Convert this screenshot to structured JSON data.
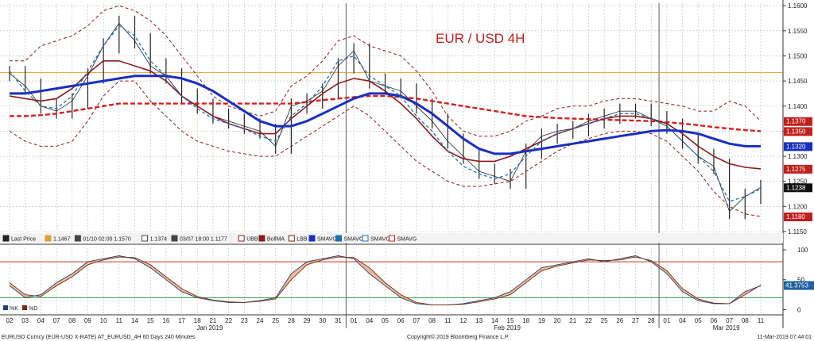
{
  "chart_data": {
    "type": "line",
    "title": "EUR / USD 4H",
    "colors": {
      "price": "#222222",
      "ubb": "#8b1a1a",
      "bollma": "#8b1a1a",
      "sma_fast": "#1f6fb5",
      "sma_mid": "#1a2fbf",
      "sma_slow": "#d42020",
      "hline": "#e0a030",
      "k": "#1f3f7a",
      "d": "#7a2b0f",
      "overbought": "#c0392b",
      "oversold": "#2e9e3e"
    },
    "price_axis": {
      "min": 1.115,
      "max": 1.1605,
      "ticks": [
        "1.1600",
        "1.1550",
        "1.1500",
        "1.1450",
        "1.1400",
        "1.1350",
        "1.1300",
        "1.1250",
        "1.1200",
        "1.1150"
      ]
    },
    "price_tags": [
      {
        "value": "1.1370",
        "color": "#c0201f",
        "y": 1.137
      },
      {
        "value": "1.1350",
        "color": "#c0201f",
        "y": 1.135
      },
      {
        "value": "1.1320",
        "color": "#1a2fbf",
        "y": 1.132
      },
      {
        "value": "1.1275",
        "color": "#c0201f",
        "y": 1.1275
      },
      {
        "value": "1.1238",
        "color": "#111111",
        "y": 1.1238
      },
      {
        "value": "1.1180",
        "color": "#c0201f",
        "y": 1.118
      }
    ],
    "hline_value": 1.1467,
    "osc_axis": {
      "ticks": [
        "100",
        "50",
        "0"
      ],
      "overbought": 80,
      "oversold": 20
    },
    "osc_tag": "41.3753",
    "x_labels": [
      "02",
      "03",
      "04",
      "07",
      "08",
      "09",
      "10",
      "11",
      "14",
      "15",
      "16",
      "17",
      "18",
      "21",
      "22",
      "23",
      "24",
      "25",
      "28",
      "29",
      "30",
      "31",
      "01",
      "04",
      "05",
      "06",
      "07",
      "08",
      "11",
      "12",
      "13",
      "14",
      "15",
      "18",
      "19",
      "20",
      "21",
      "22",
      "25",
      "26",
      "27",
      "28",
      "01",
      "04",
      "05",
      "06",
      "07",
      "08",
      "11"
    ],
    "month_labels": [
      {
        "text": "Jan 2019",
        "index": 13
      },
      {
        "text": "Feb 2019",
        "index": 32
      },
      {
        "text": "Mar 2019",
        "index": 46
      }
    ],
    "close": [
      1.1465,
      1.144,
      1.14,
      1.139,
      1.141,
      1.146,
      1.152,
      1.1565,
      1.153,
      1.148,
      1.146,
      1.142,
      1.14,
      1.138,
      1.137,
      1.136,
      1.135,
      1.132,
      1.14,
      1.141,
      1.143,
      1.148,
      1.151,
      1.145,
      1.144,
      1.143,
      1.14,
      1.137,
      1.133,
      1.13,
      1.127,
      1.126,
      1.125,
      1.131,
      1.134,
      1.135,
      1.1355,
      1.137,
      1.138,
      1.139,
      1.139,
      1.1375,
      1.136,
      1.133,
      1.13,
      1.128,
      1.119,
      1.122,
      1.1238
    ],
    "ubb": [
      1.149,
      1.149,
      1.152,
      1.153,
      1.154,
      1.156,
      1.159,
      1.16,
      1.159,
      1.157,
      1.154,
      1.15,
      1.146,
      1.142,
      1.14,
      1.139,
      1.138,
      1.139,
      1.144,
      1.146,
      1.149,
      1.153,
      1.154,
      1.152,
      1.151,
      1.15,
      1.147,
      1.143,
      1.138,
      1.135,
      1.134,
      1.134,
      1.135,
      1.137,
      1.138,
      1.1395,
      1.14,
      1.14,
      1.141,
      1.1415,
      1.1415,
      1.141,
      1.1405,
      1.14,
      1.139,
      1.139,
      1.141,
      1.14,
      1.137
    ],
    "lbb": [
      1.135,
      1.133,
      1.132,
      1.132,
      1.133,
      1.137,
      1.142,
      1.145,
      1.145,
      1.141,
      1.138,
      1.135,
      1.133,
      1.132,
      1.131,
      1.1305,
      1.13,
      1.13,
      1.132,
      1.134,
      1.136,
      1.138,
      1.14,
      1.138,
      1.135,
      1.132,
      1.129,
      1.127,
      1.125,
      1.124,
      1.124,
      1.1245,
      1.125,
      1.127,
      1.129,
      1.131,
      1.1325,
      1.1335,
      1.1345,
      1.135,
      1.135,
      1.1345,
      1.133,
      1.13,
      1.127,
      1.123,
      1.12,
      1.1185,
      1.118
    ],
    "bollma": [
      1.142,
      1.1415,
      1.141,
      1.1415,
      1.1435,
      1.1465,
      1.149,
      1.149,
      1.148,
      1.147,
      1.145,
      1.142,
      1.14,
      1.138,
      1.1365,
      1.1355,
      1.1345,
      1.1345,
      1.1375,
      1.14,
      1.1425,
      1.1445,
      1.1455,
      1.145,
      1.143,
      1.1405,
      1.1375,
      1.134,
      1.131,
      1.1295,
      1.129,
      1.129,
      1.13,
      1.1315,
      1.133,
      1.1345,
      1.1355,
      1.1365,
      1.1375,
      1.138,
      1.138,
      1.1375,
      1.1365,
      1.1345,
      1.132,
      1.13,
      1.1285,
      1.1278,
      1.1275
    ],
    "sma_fast": [
      1.147,
      1.143,
      1.14,
      1.1395,
      1.142,
      1.147,
      1.152,
      1.156,
      1.154,
      1.149,
      1.146,
      1.142,
      1.1395,
      1.1375,
      1.1365,
      1.1355,
      1.134,
      1.133,
      1.138,
      1.1405,
      1.144,
      1.149,
      1.15,
      1.146,
      1.144,
      1.142,
      1.138,
      1.135,
      1.131,
      1.128,
      1.1265,
      1.1255,
      1.1265,
      1.13,
      1.133,
      1.1345,
      1.1355,
      1.1365,
      1.1375,
      1.1385,
      1.1385,
      1.1375,
      1.136,
      1.133,
      1.13,
      1.127,
      1.121,
      1.122,
      1.1235
    ],
    "sma_mid": [
      1.1425,
      1.1425,
      1.143,
      1.1435,
      1.144,
      1.1445,
      1.145,
      1.1455,
      1.146,
      1.146,
      1.146,
      1.1455,
      1.1445,
      1.143,
      1.141,
      1.139,
      1.137,
      1.136,
      1.136,
      1.137,
      1.1385,
      1.14,
      1.1415,
      1.1425,
      1.1425,
      1.142,
      1.1405,
      1.1385,
      1.136,
      1.1335,
      1.1315,
      1.1305,
      1.1305,
      1.131,
      1.1315,
      1.132,
      1.1325,
      1.133,
      1.1335,
      1.134,
      1.1345,
      1.135,
      1.1352,
      1.135,
      1.1345,
      1.1335,
      1.1325,
      1.132,
      1.132
    ],
    "sma_slow": [
      1.138,
      1.138,
      1.1382,
      1.1385,
      1.139,
      1.1395,
      1.14,
      1.1405,
      1.1405,
      1.1405,
      1.1405,
      1.1405,
      1.1405,
      1.1405,
      1.1405,
      1.1405,
      1.1405,
      1.1405,
      1.1405,
      1.1408,
      1.1412,
      1.1415,
      1.1418,
      1.142,
      1.142,
      1.1418,
      1.1415,
      1.141,
      1.1405,
      1.14,
      1.1395,
      1.139,
      1.1385,
      1.138,
      1.1378,
      1.1376,
      1.1375,
      1.1374,
      1.1373,
      1.1372,
      1.1371,
      1.137,
      1.1368,
      1.1365,
      1.1362,
      1.1358,
      1.1355,
      1.1352,
      1.135
    ],
    "osc_k": [
      40,
      20,
      25,
      45,
      60,
      80,
      85,
      90,
      85,
      70,
      50,
      30,
      20,
      15,
      12,
      12,
      15,
      20,
      60,
      80,
      85,
      90,
      85,
      60,
      40,
      20,
      10,
      8,
      8,
      10,
      15,
      20,
      30,
      50,
      70,
      75,
      80,
      85,
      80,
      85,
      90,
      80,
      60,
      30,
      15,
      10,
      10,
      30,
      40
    ],
    "osc_d": [
      45,
      25,
      22,
      40,
      55,
      75,
      83,
      88,
      87,
      75,
      55,
      35,
      22,
      16,
      13,
      12,
      14,
      18,
      50,
      75,
      83,
      88,
      87,
      70,
      45,
      25,
      12,
      8,
      8,
      9,
      13,
      18,
      25,
      45,
      65,
      73,
      78,
      83,
      82,
      83,
      88,
      82,
      65,
      35,
      18,
      11,
      10,
      25,
      41
    ]
  },
  "legend": {
    "items": [
      {
        "label": "Last Price",
        "color": "#222222",
        "marker": "box"
      },
      {
        "label": "1.1467",
        "color": "#e0a030",
        "marker": "box"
      },
      {
        "label": "01/10 02:00 1.1570",
        "color": "#444444",
        "marker": "up"
      },
      {
        "label": "1.1374",
        "color": "#444444",
        "marker": "dash"
      },
      {
        "label": "03/07 18:00 1.1177",
        "color": "#444444",
        "marker": "down"
      },
      {
        "label": "UBB",
        "color": "#8b1a1a",
        "marker": "dashbox"
      },
      {
        "label": "BollMA",
        "color": "#8b1a1a",
        "marker": "box"
      },
      {
        "label": "LBB",
        "color": "#8b1a1a",
        "marker": "dashbox"
      },
      {
        "label": "SMAVG",
        "color": "#1a2fbf",
        "marker": "box"
      },
      {
        "label": "SMAVG",
        "color": "#1f6fb5",
        "marker": "box"
      },
      {
        "label": "SMAVG",
        "color": "#1f6fb5",
        "marker": "dashbox"
      },
      {
        "label": "SMAVG",
        "color": "#d42020",
        "marker": "dashbox"
      }
    ],
    "osc_items": [
      {
        "label": "%K",
        "color": "#1f3f7a"
      },
      {
        "label": "%D",
        "color": "#7a2b0f"
      }
    ]
  },
  "footer": {
    "left": "EURUSD Curncy (EUR-USD X-RATE) AT_EURUSD_4H 60 Days 240 Minutes",
    "center": "Copyright© 2019 Bloomberg Finance L.P.",
    "right": "11-Mar-2019 07:44:01"
  }
}
